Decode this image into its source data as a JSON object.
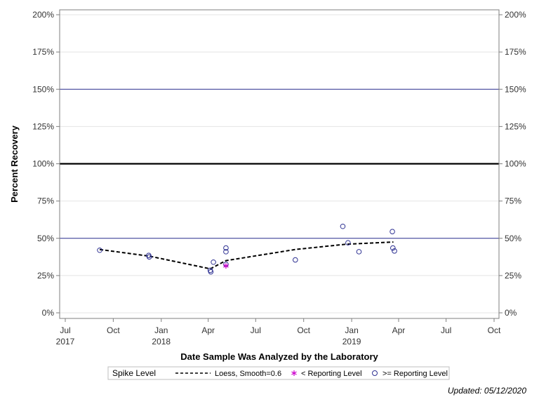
{
  "chart_data": {
    "type": "scatter",
    "xlabel": "Date Sample Was Analyzed by the Laboratory",
    "ylabel": "Percent Recovery",
    "xlim": [
      "2017-07-01",
      "2019-10-01"
    ],
    "ylim": [
      0,
      200
    ],
    "x_ticks": [
      {
        "date": "2017-07-01",
        "label": "Jul",
        "year": "2017"
      },
      {
        "date": "2017-10-01",
        "label": "Oct",
        "year": ""
      },
      {
        "date": "2018-01-01",
        "label": "Jan",
        "year": "2018"
      },
      {
        "date": "2018-04-01",
        "label": "Apr",
        "year": ""
      },
      {
        "date": "2018-07-01",
        "label": "Jul",
        "year": ""
      },
      {
        "date": "2018-10-01",
        "label": "Oct",
        "year": ""
      },
      {
        "date": "2019-01-01",
        "label": "Jan",
        "year": "2019"
      },
      {
        "date": "2019-04-01",
        "label": "Apr",
        "year": ""
      },
      {
        "date": "2019-07-01",
        "label": "Jul",
        "year": ""
      },
      {
        "date": "2019-10-01",
        "label": "Oct",
        "year": ""
      }
    ],
    "y_ticks": [
      {
        "value": 0,
        "label": "0%"
      },
      {
        "value": 25,
        "label": "25%"
      },
      {
        "value": 50,
        "label": "50%"
      },
      {
        "value": 75,
        "label": "75%"
      },
      {
        "value": 100,
        "label": "100%"
      },
      {
        "value": 125,
        "label": "125%"
      },
      {
        "value": 150,
        "label": "150%"
      },
      {
        "value": 175,
        "label": "175%"
      },
      {
        "value": 200,
        "label": "200%"
      }
    ],
    "reference_lines": [
      {
        "value": 50,
        "color": "#2e3192",
        "style": "thin"
      },
      {
        "value": 100,
        "color": "#000000",
        "style": "thick"
      },
      {
        "value": 150,
        "color": "#2e3192",
        "style": "thin"
      }
    ],
    "grid": true,
    "legend_position": "bottom",
    "legend": {
      "title": "Spike Level",
      "items": [
        {
          "label": "Loess, Smooth=0.6",
          "symbol": "dashed-line"
        },
        {
          "label": "< Reporting Level",
          "symbol": "star"
        },
        {
          "label": ">= Reporting Level",
          "symbol": "circle"
        }
      ]
    },
    "series": [
      {
        "name": ">= Reporting Level",
        "marker": "circle",
        "color": "#2e3192",
        "points": [
          {
            "x": "2017-09-05",
            "y": 42
          },
          {
            "x": "2017-12-08",
            "y": 38.5
          },
          {
            "x": "2017-12-09",
            "y": 37.5
          },
          {
            "x": "2018-04-05",
            "y": 28.5
          },
          {
            "x": "2018-04-06",
            "y": 27.5
          },
          {
            "x": "2018-04-11",
            "y": 34
          },
          {
            "x": "2018-05-05",
            "y": 43.5
          },
          {
            "x": "2018-05-05",
            "y": 41
          },
          {
            "x": "2018-05-05",
            "y": 32.5
          },
          {
            "x": "2018-09-15",
            "y": 35.5
          },
          {
            "x": "2018-12-15",
            "y": 58
          },
          {
            "x": "2018-12-25",
            "y": 47
          },
          {
            "x": "2019-01-15",
            "y": 41
          },
          {
            "x": "2019-03-20",
            "y": 54.5
          },
          {
            "x": "2019-03-21",
            "y": 43.5
          },
          {
            "x": "2019-03-24",
            "y": 41.5
          }
        ]
      },
      {
        "name": "< Reporting Level",
        "marker": "star",
        "color": "#cc00cc",
        "points": [
          {
            "x": "2018-05-05",
            "y": 31.5
          }
        ]
      },
      {
        "name": "Loess, Smooth=0.6",
        "type": "line",
        "style": "dashed",
        "color": "#000000",
        "points": [
          {
            "x": "2017-09-05",
            "y": 42.5
          },
          {
            "x": "2017-12-10",
            "y": 38
          },
          {
            "x": "2018-04-05",
            "y": 29.5
          },
          {
            "x": "2018-05-05",
            "y": 35
          },
          {
            "x": "2018-09-15",
            "y": 42.5
          },
          {
            "x": "2018-12-20",
            "y": 46
          },
          {
            "x": "2019-03-22",
            "y": 47.5
          }
        ]
      }
    ]
  },
  "footer": {
    "updated": "Updated: 05/12/2020"
  }
}
